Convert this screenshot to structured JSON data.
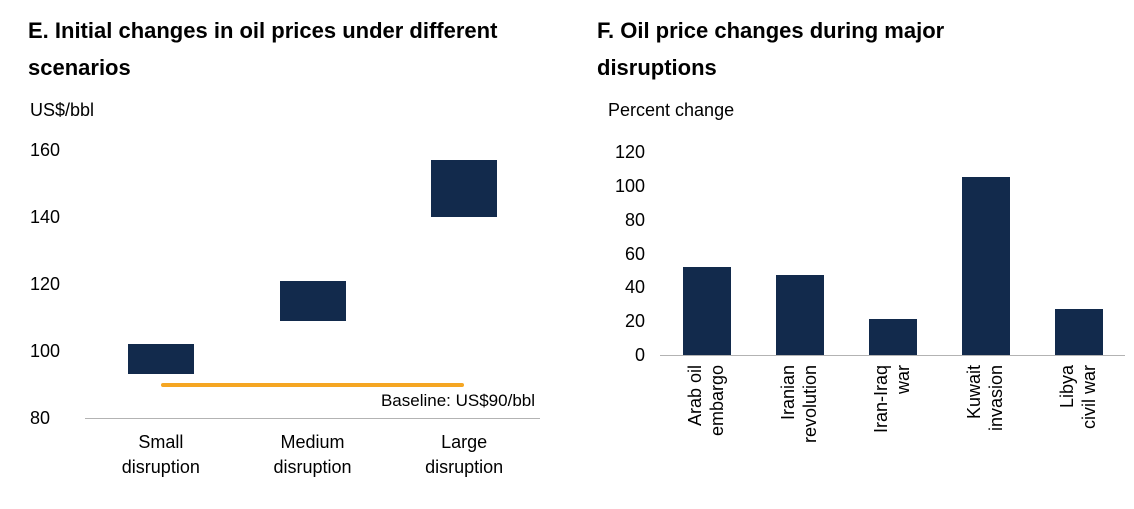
{
  "colors": {
    "bar": "#122a4c",
    "baseline": "#f5a623",
    "axis_line": "#b3b3b3",
    "text": "#000000"
  },
  "chart_data": [
    {
      "type": "bar",
      "subtype": "floating-range",
      "title": "E. Initial changes in oil prices under different scenarios",
      "ylabel": "US$/bbl",
      "categories": [
        "Small disruption",
        "Medium disruption",
        "Large disruption"
      ],
      "ranges": [
        [
          93,
          102
        ],
        [
          109,
          121
        ],
        [
          140,
          157
        ]
      ],
      "baseline": {
        "value": 90,
        "label": "Baseline: US$90/bbl"
      },
      "ylim": [
        80,
        163
      ],
      "yticks": [
        80,
        100,
        120,
        140,
        160
      ],
      "grid": false,
      "legend": false
    },
    {
      "type": "bar",
      "title": "F. Oil price changes during major disruptions",
      "ylabel": "Percent change",
      "categories": [
        "Arab oil embargo",
        "Iranian revolution",
        "Iran-Iraq war",
        "Kuwait invasion",
        "Libya civil war"
      ],
      "values": [
        52,
        47,
        21,
        105,
        27
      ],
      "ylim": [
        0,
        120
      ],
      "yticks": [
        0,
        20,
        40,
        60,
        80,
        100,
        120
      ],
      "grid": false,
      "legend": false
    }
  ]
}
